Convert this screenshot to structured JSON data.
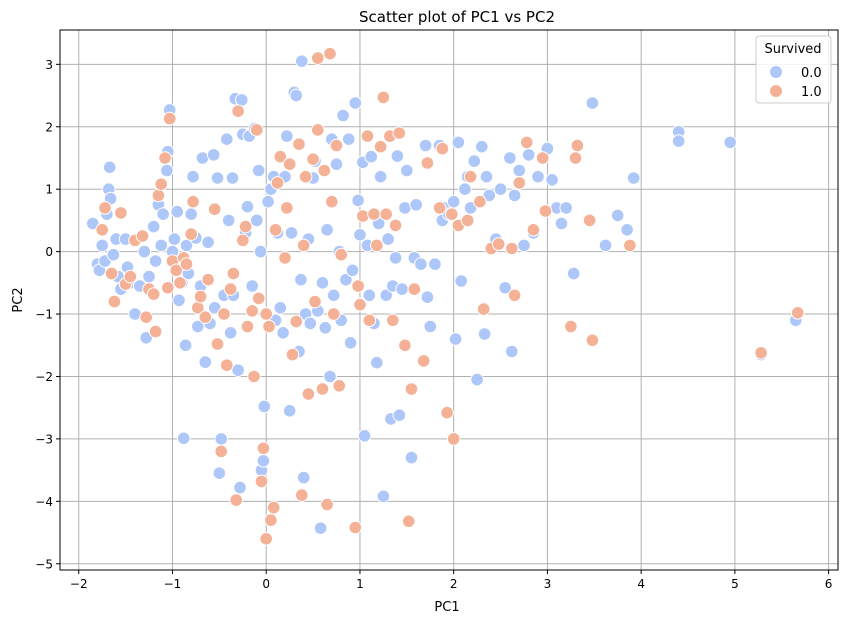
{
  "chart_data": {
    "type": "scatter",
    "title": "Scatter plot of PC1 vs PC2",
    "xlabel": "PC1",
    "ylabel": "PC2",
    "xlim": [
      -2.2,
      6.1
    ],
    "ylim": [
      -5.1,
      3.55
    ],
    "xticks": [
      -2,
      -1,
      0,
      1,
      2,
      3,
      4,
      5,
      6
    ],
    "yticks": [
      -5,
      -4,
      -3,
      -2,
      -1,
      0,
      1,
      2,
      3
    ],
    "xtick_labels": [
      "−2",
      "−1",
      "0",
      "1",
      "2",
      "3",
      "4",
      "5",
      "6"
    ],
    "ytick_labels": [
      "−5",
      "−4",
      "−3",
      "−2",
      "−1",
      "0",
      "1",
      "2",
      "3"
    ],
    "grid": true,
    "legend": {
      "title": "Survived",
      "placement": "top-right"
    },
    "series": [
      {
        "name": "0.0",
        "color": "#aec7f9",
        "points": [
          [
            -1.85,
            0.45
          ],
          [
            -1.8,
            -0.2
          ],
          [
            -1.78,
            -0.3
          ],
          [
            -1.75,
            0.1
          ],
          [
            -1.72,
            -0.15
          ],
          [
            -1.7,
            0.6
          ],
          [
            -1.68,
            1.0
          ],
          [
            -1.67,
            1.35
          ],
          [
            -1.66,
            0.85
          ],
          [
            -1.63,
            -0.05
          ],
          [
            -1.6,
            0.2
          ],
          [
            -1.58,
            -0.4
          ],
          [
            -1.55,
            -0.6
          ],
          [
            -1.5,
            0.2
          ],
          [
            -1.48,
            -0.25
          ],
          [
            -1.45,
            -0.5
          ],
          [
            -1.4,
            -1.0
          ],
          [
            -1.35,
            -0.55
          ],
          [
            -1.3,
            0.0
          ],
          [
            -1.28,
            -1.38
          ],
          [
            -1.25,
            -0.4
          ],
          [
            -1.2,
            0.4
          ],
          [
            -1.18,
            -0.15
          ],
          [
            -1.15,
            0.75
          ],
          [
            -1.12,
            0.1
          ],
          [
            -1.1,
            0.6
          ],
          [
            -1.06,
            1.3
          ],
          [
            -1.05,
            1.6
          ],
          [
            -1.03,
            2.27
          ],
          [
            -1.0,
            0.0
          ],
          [
            -0.98,
            0.2
          ],
          [
            -0.95,
            0.64
          ],
          [
            -0.93,
            -0.78
          ],
          [
            -0.9,
            -0.5
          ],
          [
            -0.88,
            -2.99
          ],
          [
            -0.86,
            -1.5
          ],
          [
            -0.85,
            0.1
          ],
          [
            -0.83,
            -0.35
          ],
          [
            -0.8,
            0.6
          ],
          [
            -0.78,
            1.2
          ],
          [
            -0.75,
            0.22
          ],
          [
            -0.73,
            -1.2
          ],
          [
            -0.7,
            -0.55
          ],
          [
            -0.68,
            1.5
          ],
          [
            -0.65,
            -1.77
          ],
          [
            -0.62,
            0.15
          ],
          [
            -0.6,
            -1.15
          ],
          [
            -0.56,
            1.55
          ],
          [
            -0.55,
            -0.9
          ],
          [
            -0.52,
            1.18
          ],
          [
            -0.5,
            -3.55
          ],
          [
            -0.48,
            -3.0
          ],
          [
            -0.45,
            -0.7
          ],
          [
            -0.42,
            1.8
          ],
          [
            -0.4,
            0.5
          ],
          [
            -0.38,
            -1.3
          ],
          [
            -0.36,
            1.18
          ],
          [
            -0.35,
            -0.7
          ],
          [
            -0.33,
            2.45
          ],
          [
            -0.3,
            -1.9
          ],
          [
            -0.28,
            -3.78
          ],
          [
            -0.26,
            2.43
          ],
          [
            -0.25,
            1.88
          ],
          [
            -0.22,
            0.3
          ],
          [
            -0.2,
            0.72
          ],
          [
            -0.18,
            1.85
          ],
          [
            -0.15,
            -0.55
          ],
          [
            -0.12,
            1.97
          ],
          [
            -0.1,
            0.5
          ],
          [
            -0.08,
            1.3
          ],
          [
            -0.06,
            0.0
          ],
          [
            -0.05,
            -3.5
          ],
          [
            -0.03,
            -3.35
          ],
          [
            -0.02,
            -2.48
          ],
          [
            0.02,
            0.8
          ],
          [
            0.05,
            1.0
          ],
          [
            0.08,
            1.2
          ],
          [
            0.1,
            -1.1
          ],
          [
            0.12,
            0.3
          ],
          [
            0.15,
            -0.9
          ],
          [
            0.18,
            -1.3
          ],
          [
            0.2,
            1.2
          ],
          [
            0.22,
            1.85
          ],
          [
            0.25,
            -2.55
          ],
          [
            0.27,
            0.3
          ],
          [
            0.3,
            2.55
          ],
          [
            0.32,
            2.5
          ],
          [
            0.35,
            -1.6
          ],
          [
            0.37,
            -0.45
          ],
          [
            0.38,
            3.05
          ],
          [
            0.4,
            -3.62
          ],
          [
            0.42,
            -1.0
          ],
          [
            0.45,
            0.2
          ],
          [
            0.47,
            -1.15
          ],
          [
            0.5,
            1.18
          ],
          [
            0.52,
            1.45
          ],
          [
            0.55,
            -0.95
          ],
          [
            0.58,
            -4.43
          ],
          [
            0.6,
            -0.5
          ],
          [
            0.63,
            -1.22
          ],
          [
            0.65,
            0.35
          ],
          [
            0.68,
            -2.0
          ],
          [
            0.7,
            1.8
          ],
          [
            0.72,
            -0.7
          ],
          [
            0.75,
            1.4
          ],
          [
            0.78,
            0.0
          ],
          [
            0.8,
            -1.1
          ],
          [
            0.82,
            2.18
          ],
          [
            0.85,
            -0.45
          ],
          [
            0.88,
            1.8
          ],
          [
            0.9,
            -1.46
          ],
          [
            0.92,
            -0.3
          ],
          [
            0.95,
            2.38
          ],
          [
            0.98,
            0.82
          ],
          [
            1.0,
            0.27
          ],
          [
            1.03,
            1.43
          ],
          [
            1.05,
            -2.95
          ],
          [
            1.08,
            0.1
          ],
          [
            1.1,
            -0.7
          ],
          [
            1.12,
            1.52
          ],
          [
            1.15,
            -1.15
          ],
          [
            1.18,
            -1.78
          ],
          [
            1.2,
            0.45
          ],
          [
            1.22,
            1.2
          ],
          [
            1.25,
            -3.92
          ],
          [
            1.28,
            -0.7
          ],
          [
            1.3,
            0.2
          ],
          [
            1.33,
            -2.68
          ],
          [
            1.35,
            -0.55
          ],
          [
            1.38,
            -0.1
          ],
          [
            1.4,
            1.53
          ],
          [
            1.42,
            -2.62
          ],
          [
            1.45,
            -0.6
          ],
          [
            1.48,
            0.7
          ],
          [
            1.5,
            1.3
          ],
          [
            1.55,
            -3.3
          ],
          [
            1.58,
            -0.1
          ],
          [
            1.6,
            0.75
          ],
          [
            1.65,
            -0.2
          ],
          [
            1.7,
            1.7
          ],
          [
            1.72,
            -0.73
          ],
          [
            1.75,
            -1.2
          ],
          [
            1.8,
            -0.2
          ],
          [
            1.85,
            1.7
          ],
          [
            1.88,
            0.5
          ],
          [
            1.9,
            0.7
          ],
          [
            1.95,
            0.6
          ],
          [
            2.0,
            0.8
          ],
          [
            2.02,
            -1.4
          ],
          [
            2.05,
            1.75
          ],
          [
            2.08,
            -0.47
          ],
          [
            2.12,
            1.0
          ],
          [
            2.15,
            1.2
          ],
          [
            2.18,
            0.7
          ],
          [
            2.22,
            1.45
          ],
          [
            2.25,
            -2.05
          ],
          [
            2.3,
            1.68
          ],
          [
            2.33,
            -1.32
          ],
          [
            2.35,
            1.2
          ],
          [
            2.38,
            0.9
          ],
          [
            2.45,
            0.2
          ],
          [
            2.5,
            1.0
          ],
          [
            2.55,
            -0.58
          ],
          [
            2.6,
            1.5
          ],
          [
            2.62,
            -1.6
          ],
          [
            2.65,
            0.9
          ],
          [
            2.7,
            1.3
          ],
          [
            2.75,
            0.1
          ],
          [
            2.8,
            1.55
          ],
          [
            2.85,
            0.3
          ],
          [
            2.9,
            1.2
          ],
          [
            3.0,
            1.65
          ],
          [
            3.05,
            1.15
          ],
          [
            3.1,
            0.7
          ],
          [
            3.15,
            0.45
          ],
          [
            3.2,
            0.7
          ],
          [
            3.28,
            -0.35
          ],
          [
            3.48,
            2.38
          ],
          [
            3.62,
            0.1
          ],
          [
            3.75,
            0.58
          ],
          [
            3.85,
            0.35
          ],
          [
            3.92,
            1.18
          ],
          [
            4.4,
            1.92
          ],
          [
            4.4,
            1.77
          ],
          [
            4.95,
            1.75
          ],
          [
            5.28,
            -1.65
          ],
          [
            5.65,
            -1.1
          ]
        ]
      },
      {
        "name": "1.0",
        "color": "#f4b195",
        "points": [
          [
            -1.75,
            0.35
          ],
          [
            -1.72,
            0.7
          ],
          [
            -1.65,
            -0.35
          ],
          [
            -1.62,
            -0.8
          ],
          [
            -1.55,
            0.62
          ],
          [
            -1.5,
            -0.52
          ],
          [
            -1.45,
            -0.4
          ],
          [
            -1.4,
            0.18
          ],
          [
            -1.32,
            0.25
          ],
          [
            -1.28,
            -1.05
          ],
          [
            -1.25,
            -0.6
          ],
          [
            -1.2,
            -0.68
          ],
          [
            -1.18,
            -1.28
          ],
          [
            -1.15,
            0.9
          ],
          [
            -1.12,
            1.08
          ],
          [
            -1.08,
            1.5
          ],
          [
            -1.05,
            -0.58
          ],
          [
            -1.03,
            2.13
          ],
          [
            -1.0,
            -0.15
          ],
          [
            -0.96,
            -0.3
          ],
          [
            -0.92,
            -0.5
          ],
          [
            -0.88,
            -0.1
          ],
          [
            -0.85,
            -0.2
          ],
          [
            -0.8,
            0.28
          ],
          [
            -0.78,
            0.8
          ],
          [
            -0.73,
            -0.9
          ],
          [
            -0.7,
            -0.72
          ],
          [
            -0.65,
            -1.05
          ],
          [
            -0.62,
            -0.45
          ],
          [
            -0.55,
            0.68
          ],
          [
            -0.52,
            -1.48
          ],
          [
            -0.48,
            -3.2
          ],
          [
            -0.45,
            -1.0
          ],
          [
            -0.42,
            -1.82
          ],
          [
            -0.38,
            -0.6
          ],
          [
            -0.35,
            -0.35
          ],
          [
            -0.32,
            -3.98
          ],
          [
            -0.3,
            2.25
          ],
          [
            -0.25,
            0.18
          ],
          [
            -0.22,
            0.4
          ],
          [
            -0.2,
            -1.2
          ],
          [
            -0.15,
            -0.95
          ],
          [
            -0.13,
            -2.0
          ],
          [
            -0.1,
            1.95
          ],
          [
            -0.08,
            -0.75
          ],
          [
            -0.05,
            -3.68
          ],
          [
            -0.03,
            -3.15
          ],
          [
            0.0,
            -1.0
          ],
          [
            0.0,
            -4.6
          ],
          [
            0.03,
            -1.2
          ],
          [
            0.05,
            -4.3
          ],
          [
            0.08,
            -4.1
          ],
          [
            0.1,
            0.35
          ],
          [
            0.12,
            1.1
          ],
          [
            0.15,
            1.52
          ],
          [
            0.2,
            -0.1
          ],
          [
            0.22,
            0.7
          ],
          [
            0.25,
            1.4
          ],
          [
            0.28,
            -1.65
          ],
          [
            0.32,
            -1.12
          ],
          [
            0.35,
            1.72
          ],
          [
            0.38,
            -3.9
          ],
          [
            0.4,
            0.1
          ],
          [
            0.42,
            1.2
          ],
          [
            0.45,
            -2.28
          ],
          [
            0.5,
            1.48
          ],
          [
            0.52,
            -0.8
          ],
          [
            0.55,
            1.95
          ],
          [
            0.55,
            3.1
          ],
          [
            0.6,
            -2.2
          ],
          [
            0.62,
            1.3
          ],
          [
            0.65,
            -4.05
          ],
          [
            0.68,
            3.17
          ],
          [
            0.7,
            0.8
          ],
          [
            0.72,
            -1.0
          ],
          [
            0.75,
            1.7
          ],
          [
            0.78,
            -2.15
          ],
          [
            0.8,
            -0.05
          ],
          [
            0.95,
            -4.42
          ],
          [
            0.98,
            -0.55
          ],
          [
            1.0,
            -0.85
          ],
          [
            1.03,
            0.57
          ],
          [
            1.08,
            1.85
          ],
          [
            1.1,
            -1.1
          ],
          [
            1.15,
            0.6
          ],
          [
            1.18,
            0.1
          ],
          [
            1.22,
            1.68
          ],
          [
            1.25,
            2.47
          ],
          [
            1.28,
            0.6
          ],
          [
            1.32,
            1.85
          ],
          [
            1.35,
            -1.1
          ],
          [
            1.38,
            0.42
          ],
          [
            1.42,
            1.9
          ],
          [
            1.48,
            -1.5
          ],
          [
            1.52,
            -4.32
          ],
          [
            1.55,
            -2.2
          ],
          [
            1.58,
            -0.6
          ],
          [
            1.68,
            -1.75
          ],
          [
            1.72,
            1.42
          ],
          [
            1.85,
            0.7
          ],
          [
            1.88,
            1.65
          ],
          [
            1.93,
            -2.58
          ],
          [
            1.98,
            0.6
          ],
          [
            2.0,
            -3.0
          ],
          [
            2.05,
            0.42
          ],
          [
            2.15,
            0.5
          ],
          [
            2.18,
            1.2
          ],
          [
            2.28,
            0.8
          ],
          [
            2.32,
            -0.92
          ],
          [
            2.4,
            0.05
          ],
          [
            2.48,
            0.12
          ],
          [
            2.62,
            0.05
          ],
          [
            2.65,
            -0.7
          ],
          [
            2.7,
            1.1
          ],
          [
            2.78,
            1.75
          ],
          [
            2.85,
            0.35
          ],
          [
            2.95,
            1.5
          ],
          [
            2.98,
            0.65
          ],
          [
            3.25,
            -1.2
          ],
          [
            3.3,
            1.5
          ],
          [
            3.32,
            1.7
          ],
          [
            3.45,
            0.5
          ],
          [
            3.48,
            -1.42
          ],
          [
            3.88,
            0.1
          ],
          [
            5.28,
            -1.62
          ],
          [
            5.67,
            -0.98
          ]
        ]
      }
    ]
  }
}
